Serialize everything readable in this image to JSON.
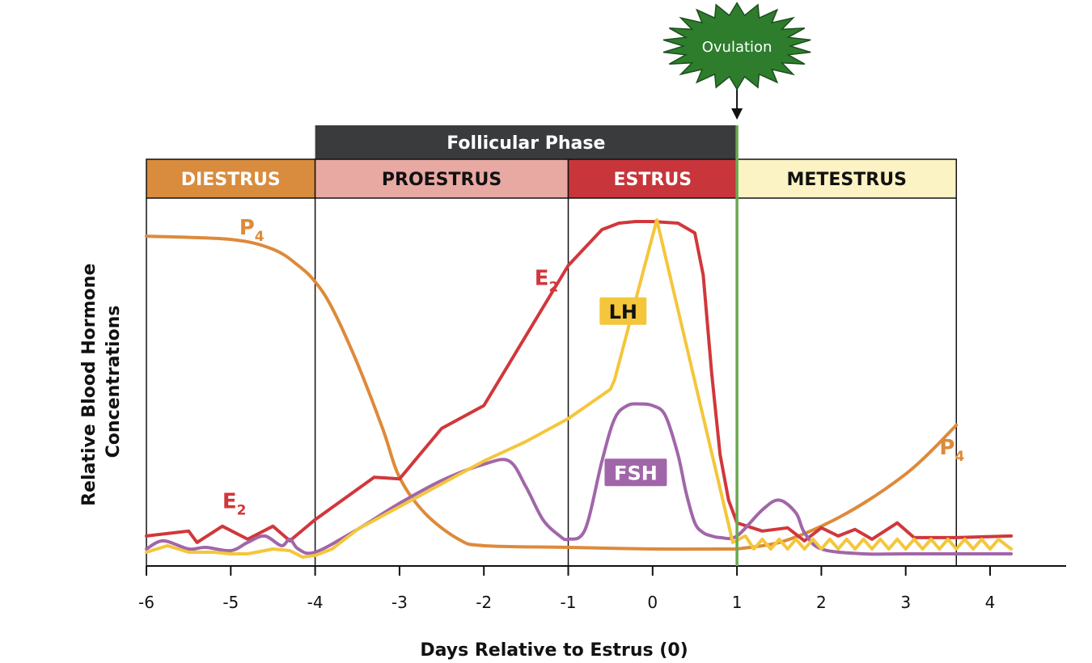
{
  "chart_data": {
    "type": "line",
    "title": "",
    "xlabel": "Days Relative to Estrus (0)",
    "ylabel_lines": [
      "Relative Blood Hormone",
      "Concentrations"
    ],
    "xlim": [
      -6,
      4.3
    ],
    "ylim": [
      0,
      100
    ],
    "x_ticks": [
      -6,
      -5,
      -4,
      -3,
      -2,
      -1,
      0,
      1,
      2,
      3,
      4
    ],
    "x_tick_labels": [
      "-6",
      "-5",
      "-4",
      "-3",
      "-2",
      "-1",
      "0",
      "1",
      "2",
      "3",
      "4"
    ],
    "grid": false,
    "legend": "none",
    "top_phase": {
      "label": "Follicular Phase",
      "start": -4,
      "end": 1
    },
    "stages": [
      {
        "label": "DIESTRUS",
        "start": -6,
        "end": -4,
        "fill": "#d98c3e",
        "text_color": "#ffffff"
      },
      {
        "label": "PROESTRUS",
        "start": -4,
        "end": -1,
        "fill": "#e8a9a3",
        "text_color": "#111111"
      },
      {
        "label": "ESTRUS",
        "start": -1,
        "end": 1,
        "fill": "#c8353a",
        "text_color": "#ffffff"
      },
      {
        "label": "METESTRUS",
        "start": 1,
        "end": 3.6,
        "fill": "#fbf3c3",
        "text_color": "#111111"
      }
    ],
    "ovulation": {
      "label": "Ovulation",
      "day": 1
    },
    "series": [
      {
        "key": "P4_diestrus",
        "color": "#dd8a3a",
        "smooth": true,
        "x": [
          -6,
          -5,
          -4.5,
          -4.2,
          -4,
          -3.8,
          -3.5,
          -3.2,
          -3,
          -2.7,
          -2.3,
          -2,
          -1,
          0,
          1
        ],
        "y": [
          97,
          96,
          93,
          88,
          83,
          75,
          58,
          38,
          23,
          12,
          4,
          2,
          1.5,
          1,
          1
        ]
      },
      {
        "key": "P4_metestrus",
        "color": "#dd8a3a",
        "smooth": true,
        "x": [
          1,
          1.5,
          2,
          2.5,
          3,
          3.3,
          3.6
        ],
        "y": [
          1,
          3,
          8,
          15,
          24,
          31,
          39
        ]
      },
      {
        "key": "E2",
        "color": "#d1373b",
        "smooth": false,
        "x": [
          -6,
          -5.5,
          -5.4,
          -5.1,
          -4.8,
          -4.5,
          -4.3,
          -4,
          -3.3,
          -3,
          -2.5,
          -2,
          -1,
          -0.6,
          -0.4,
          -0.2,
          0,
          0.3,
          0.5,
          0.6,
          0.7,
          0.8,
          0.9,
          1,
          1.3,
          1.6,
          1.8,
          2,
          2.2,
          2.4,
          2.6,
          2.9,
          3.1,
          3.6,
          4.25
        ],
        "y": [
          5,
          6.5,
          3,
          8,
          4,
          8,
          3.5,
          10,
          23,
          22.5,
          38,
          45,
          88,
          99,
          101,
          101.5,
          101.5,
          101,
          98,
          85,
          55,
          30,
          16,
          9,
          6.5,
          7.5,
          3.5,
          7.5,
          5,
          7,
          4,
          9,
          4.5,
          4.5,
          5
        ]
      },
      {
        "key": "FSH",
        "color": "#a166a9",
        "smooth": true,
        "x": [
          -6,
          -5.8,
          -5.5,
          -5.3,
          -5,
          -4.8,
          -4.6,
          -4.4,
          -4.3,
          -4.2,
          -4,
          -3.5,
          -3,
          -2.5,
          -2,
          -1.7,
          -1.5,
          -1.3,
          -1.1,
          -1,
          -0.8,
          -0.6,
          -0.45,
          -0.3,
          -0.15,
          0,
          0.15,
          0.3,
          0.4,
          0.5,
          0.6,
          0.7,
          0.8,
          1,
          1.3,
          1.5,
          1.7,
          1.8,
          2,
          2.5,
          3,
          4.25
        ],
        "y": [
          1,
          3.5,
          1,
          1.5,
          0.5,
          3,
          5,
          2,
          4,
          1,
          0,
          7,
          15,
          22,
          27,
          28,
          20,
          10,
          5,
          4,
          7,
          28,
          41,
          45,
          45.5,
          45,
          42,
          30,
          18,
          9,
          6,
          5,
          4.5,
          5,
          13,
          16,
          12,
          6,
          1,
          -0.5,
          -0.5,
          -0.5
        ]
      },
      {
        "key": "LH",
        "color": "#f4c63b",
        "smooth": false,
        "x": [
          -6,
          -5.75,
          -5.5,
          -5.2,
          -5,
          -4.8,
          -4.5,
          -4.3,
          -4.15,
          -4,
          -3.8,
          -3.5,
          -3,
          -2.5,
          -2,
          -1.5,
          -1,
          -0.5,
          -0.45,
          0.05,
          0.95,
          1.1,
          1.2,
          1.3,
          1.4,
          1.5,
          1.6,
          1.7,
          1.8,
          1.9,
          2.0,
          2.1,
          2.2,
          2.3,
          2.4,
          2.5,
          2.6,
          2.7,
          2.8,
          2.9,
          3.0,
          3.1,
          3.2,
          3.3,
          3.4,
          3.5,
          3.6,
          3.7,
          3.8,
          3.9,
          4.0,
          4.1,
          4.25
        ],
        "y": [
          0,
          2,
          0,
          0,
          -0.5,
          -0.5,
          1,
          0.5,
          -1.5,
          -1,
          1,
          7,
          14,
          21,
          28,
          34,
          41,
          50,
          53,
          102,
          3,
          5,
          1,
          4,
          1,
          4,
          1,
          4,
          1,
          4,
          1,
          4,
          1,
          4,
          1,
          4,
          1,
          4,
          1,
          4,
          1,
          4,
          1,
          4,
          1,
          4,
          1,
          4,
          1,
          4,
          1,
          4,
          1
        ]
      }
    ],
    "annotations": [
      {
        "key": "P4_top",
        "main": "P",
        "sub": "4",
        "x": -4.9,
        "y": 97.5,
        "color": "#dd8a3a"
      },
      {
        "key": "E2_top",
        "main": "E",
        "sub": "2",
        "x": -1.4,
        "y": 82,
        "color": "#d1373b"
      },
      {
        "key": "E2_low",
        "main": "E",
        "sub": "2",
        "x": -5.1,
        "y": 13.5,
        "color": "#d1373b"
      },
      {
        "key": "P4_low",
        "main": "P",
        "sub": "4",
        "x": 3.4,
        "y": 30,
        "color": "#dd8a3a"
      }
    ],
    "boxed_labels": [
      {
        "key": "LH",
        "text": "LH",
        "x": -0.35,
        "y": 74,
        "fill": "#f4c63b",
        "text_color": "#111111"
      },
      {
        "key": "FSH",
        "text": "FSH",
        "x": -0.2,
        "y": 24.5,
        "fill": "#a166a9",
        "text_color": "#ffffff"
      }
    ]
  }
}
